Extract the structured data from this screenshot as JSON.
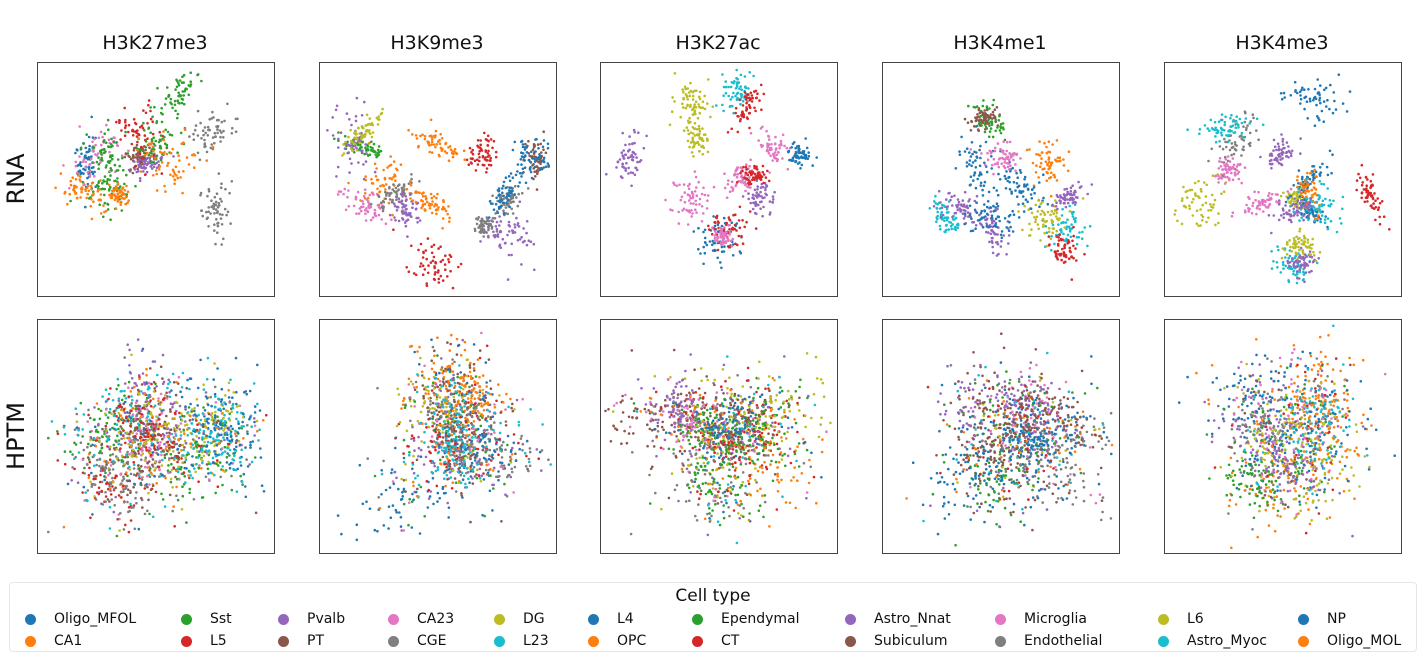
{
  "chart_data": {
    "type": "scatter",
    "description_rows": [
      "RNA",
      "HPTM"
    ],
    "columns": [
      "H3K27me3",
      "H3K9me3",
      "H3K27ac",
      "H3K4me1",
      "H3K4me3"
    ],
    "legend": {
      "title": "Cell type",
      "entries": [
        {
          "name": "Oligo_MFOL",
          "color": "#1f77b4"
        },
        {
          "name": "CA1",
          "color": "#ff7f0e"
        },
        {
          "name": "Sst",
          "color": "#2ca02c"
        },
        {
          "name": "L5",
          "color": "#d62728"
        },
        {
          "name": "Pvalb",
          "color": "#9467bd"
        },
        {
          "name": "PT",
          "color": "#8c564b"
        },
        {
          "name": "CA23",
          "color": "#e377c2"
        },
        {
          "name": "CGE",
          "color": "#7f7f7f"
        },
        {
          "name": "DG",
          "color": "#bcbd22"
        },
        {
          "name": "L23",
          "color": "#17becf"
        },
        {
          "name": "L4",
          "color": "#1f77b4"
        },
        {
          "name": "OPC",
          "color": "#ff7f0e"
        },
        {
          "name": "Ependymal",
          "color": "#2ca02c"
        },
        {
          "name": "CT",
          "color": "#d62728"
        },
        {
          "name": "Astro_Nnat",
          "color": "#9467bd"
        },
        {
          "name": "Subiculum",
          "color": "#8c564b"
        },
        {
          "name": "Microglia",
          "color": "#e377c2"
        },
        {
          "name": "Endothelial",
          "color": "#7f7f7f"
        },
        {
          "name": "L6",
          "color": "#bcbd22"
        },
        {
          "name": "Astro_Myoc",
          "color": "#17becf"
        },
        {
          "name": "NP",
          "color": "#1f77b4"
        },
        {
          "name": "Oligo_MOL",
          "color": "#ff7f0e"
        }
      ],
      "placement": "bottom"
    },
    "axes": {
      "ticks": "none",
      "grid": false
    },
    "note": "UMAP-style embeddings; individual point coordinates are not readable from the image"
  }
}
